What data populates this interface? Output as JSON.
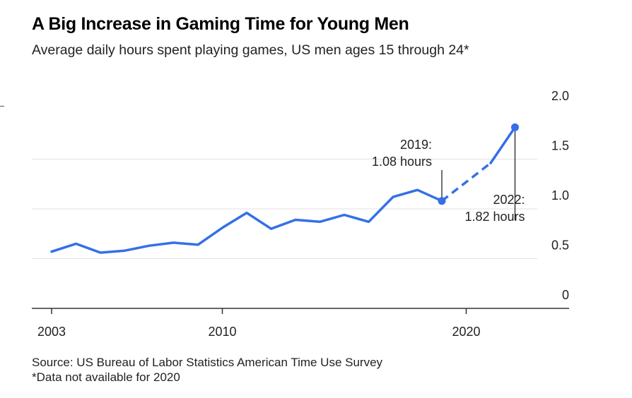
{
  "chart_data": {
    "type": "line",
    "title": "A Big Increase in Gaming Time for Young Men",
    "subtitle": "Average daily hours spent playing games, US men ages 15 through 24*",
    "xlabel": "",
    "ylabel": "",
    "xlim": [
      2003,
      2025
    ],
    "ylim": [
      0,
      2.0
    ],
    "x_ticks": [
      2003,
      2010,
      2020
    ],
    "y_ticks": [
      0,
      0.5,
      1.0,
      1.5,
      2.0
    ],
    "y_tick_labels": [
      "0",
      "0.5",
      "1.0",
      "1.5",
      "2.0"
    ],
    "grid": true,
    "y_axis_position": "right",
    "color": "#3470e6",
    "series": [
      {
        "name": "",
        "style": "solid",
        "x": [
          2003,
          2004,
          2005,
          2006,
          2007,
          2008,
          2009,
          2010,
          2011,
          2012,
          2013,
          2014,
          2015,
          2016,
          2017,
          2018,
          2019
        ],
        "values": [
          0.57,
          0.65,
          0.56,
          0.58,
          0.63,
          0.66,
          0.64,
          0.81,
          0.96,
          0.8,
          0.89,
          0.87,
          0.94,
          0.87,
          1.12,
          1.19,
          1.08
        ]
      },
      {
        "name": "",
        "style": "dashed",
        "x": [
          2019,
          2021
        ],
        "values": [
          1.08,
          1.46
        ]
      },
      {
        "name": "",
        "style": "solid",
        "x": [
          2021,
          2022
        ],
        "values": [
          1.46,
          1.82
        ]
      }
    ],
    "annotations": [
      {
        "x": 2019,
        "y": 1.08,
        "line1": "2019:",
        "line2": "1.08 hours"
      },
      {
        "x": 2022,
        "y": 1.82,
        "line1": "2022:",
        "line2": "1.82 hours"
      }
    ]
  },
  "footer": {
    "source": "Source: US Bureau of Labor Statistics American Time Use Survey",
    "note": "*Data not available for 2020"
  }
}
